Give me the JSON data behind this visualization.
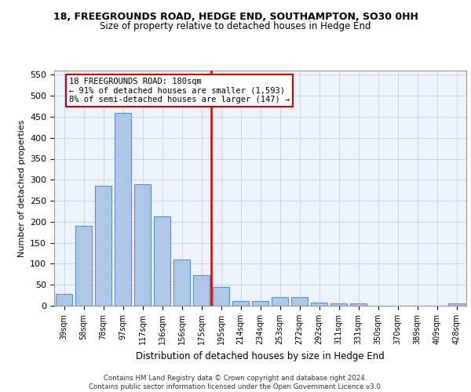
{
  "title1": "18, FREEGROUNDS ROAD, HEDGE END, SOUTHAMPTON, SO30 0HH",
  "title2": "Size of property relative to detached houses in Hedge End",
  "xlabel": "Distribution of detached houses by size in Hedge End",
  "ylabel": "Number of detached properties",
  "categories": [
    "39sqm",
    "58sqm",
    "78sqm",
    "97sqm",
    "117sqm",
    "136sqm",
    "156sqm",
    "175sqm",
    "195sqm",
    "214sqm",
    "234sqm",
    "253sqm",
    "272sqm",
    "292sqm",
    "311sqm",
    "331sqm",
    "350sqm",
    "370sqm",
    "389sqm",
    "409sqm",
    "428sqm"
  ],
  "values": [
    28,
    190,
    285,
    460,
    290,
    213,
    110,
    72,
    45,
    12,
    12,
    20,
    20,
    8,
    5,
    5,
    0,
    0,
    0,
    0,
    5
  ],
  "bar_color": "#aec6e8",
  "bar_edge_color": "#5a8fc2",
  "vline_color": "#cc0000",
  "annotation_box_text": "18 FREEGROUNDS ROAD: 180sqm\n← 91% of detached houses are smaller (1,593)\n8% of semi-detached houses are larger (147) →",
  "annotation_box_color": "#cc0000",
  "ylim": [
    0,
    560
  ],
  "yticks": [
    0,
    50,
    100,
    150,
    200,
    250,
    300,
    350,
    400,
    450,
    500,
    550
  ],
  "footer": "Contains HM Land Registry data © Crown copyright and database right 2024.\nContains public sector information licensed under the Open Government Licence v3.0.",
  "bg_color": "#eef2fa",
  "grid_color": "#c8d4e8"
}
